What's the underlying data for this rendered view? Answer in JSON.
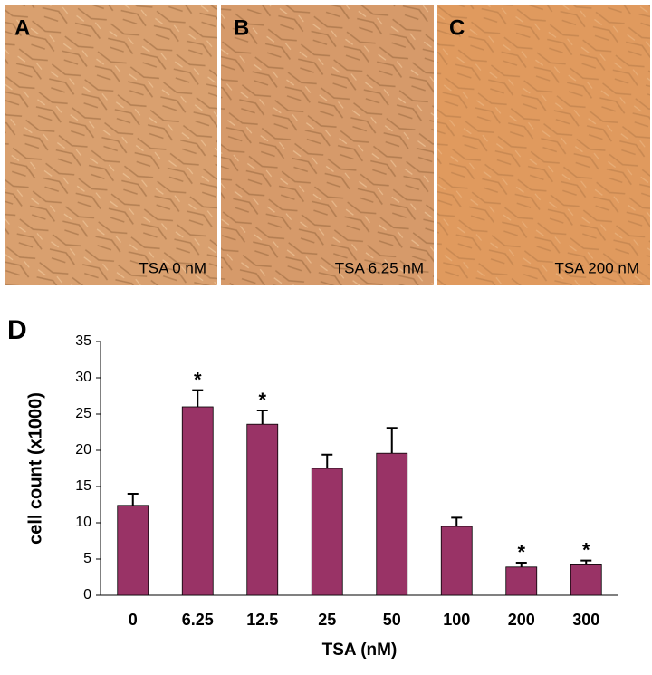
{
  "panels": [
    {
      "label": "A",
      "caption": "TSA 0 nM"
    },
    {
      "label": "B",
      "caption": "TSA 6.25 nM"
    },
    {
      "label": "C",
      "caption": "TSA 200 nM"
    }
  ],
  "chart_data": {
    "type": "bar",
    "panel_label": "D",
    "x_label": "TSA (nM)",
    "y_label": "cell count (x1000)",
    "categories": [
      "0",
      "6.25",
      "12.5",
      "25",
      "50",
      "100",
      "200",
      "300"
    ],
    "series": [
      {
        "name": "cell count",
        "color": "#993366",
        "values": [
          12.4,
          26,
          23.6,
          17.5,
          19.6,
          9.5,
          3.9,
          4.2
        ],
        "errors": [
          1.6,
          2.3,
          1.9,
          1.9,
          3.5,
          1.2,
          0.6,
          0.6
        ]
      }
    ],
    "annotations": [
      {
        "x": "6.25",
        "text": "*"
      },
      {
        "x": "12.5",
        "text": "*"
      },
      {
        "x": "200",
        "text": "*"
      },
      {
        "x": "300",
        "text": "*"
      }
    ],
    "ylim": [
      0,
      35
    ],
    "yticks": [
      0,
      5,
      10,
      15,
      20,
      25,
      30,
      35
    ],
    "grid": false
  }
}
